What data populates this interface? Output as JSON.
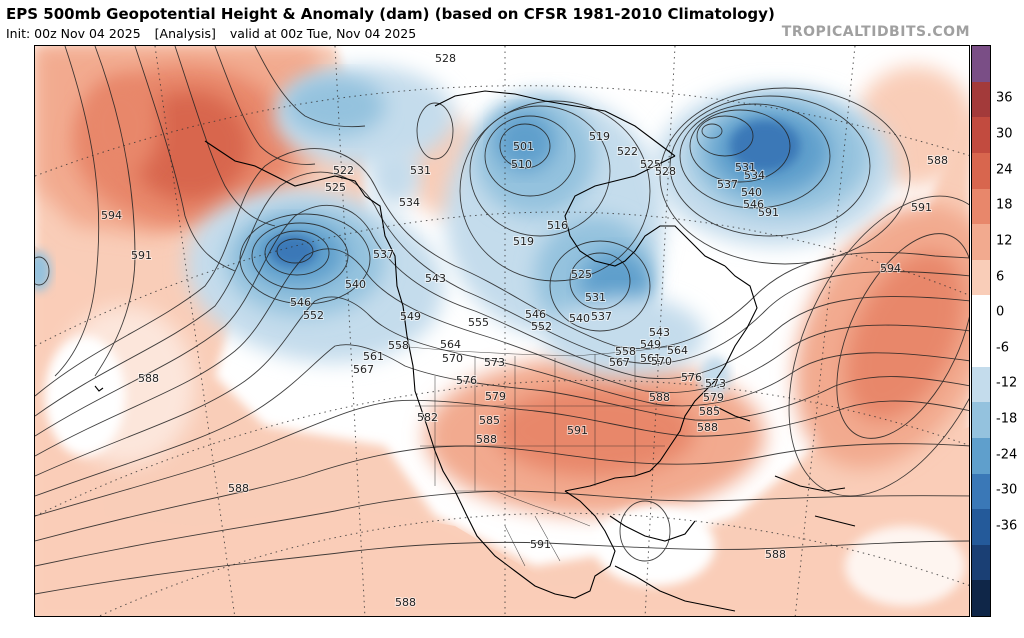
{
  "header": {
    "title": "EPS 500mb Geopotential Height & Anomaly (dam) (based on CFSR 1981-2010 Climatology)",
    "init": "Init: 00z Nov 04 2025",
    "analysis": "[Analysis]",
    "valid": "valid at 00z Tue, Nov 04 2025",
    "site": "TROPICALTIDBITS.COM"
  },
  "colorbar": {
    "ticks": [
      "36",
      "30",
      "24",
      "18",
      "12",
      "6",
      "0",
      "-6",
      "-12",
      "-18",
      "-24",
      "-30",
      "-36"
    ],
    "colors": [
      "#7a4e86",
      "#a33a3a",
      "#c24b3f",
      "#d8664e",
      "#e8876b",
      "#f2aa8f",
      "#f9cdb8",
      "#ffffff",
      "#ffffff",
      "#c4dcec",
      "#94c2de",
      "#5f9fcc",
      "#3a78b7",
      "#245a9a",
      "#1a3f74",
      "#0f2648"
    ]
  },
  "contour_labels": [
    "528",
    "594",
    "591",
    "522",
    "525",
    "531",
    "534",
    "537",
    "540",
    "546",
    "552",
    "549",
    "558",
    "561",
    "567",
    "564",
    "570",
    "576",
    "573",
    "555",
    "543",
    "501",
    "510",
    "519",
    "516",
    "546",
    "552",
    "540",
    "537",
    "531",
    "525",
    "543",
    "549",
    "558",
    "561",
    "567",
    "564",
    "570",
    "579",
    "582",
    "585",
    "588",
    "591",
    "588",
    "576",
    "573",
    "579",
    "585",
    "588",
    "591",
    "594",
    "588",
    "522",
    "525",
    "528",
    "519",
    "534",
    "537",
    "540",
    "546",
    "531",
    "591",
    "588",
    "591",
    "588",
    "588",
    "588"
  ]
}
